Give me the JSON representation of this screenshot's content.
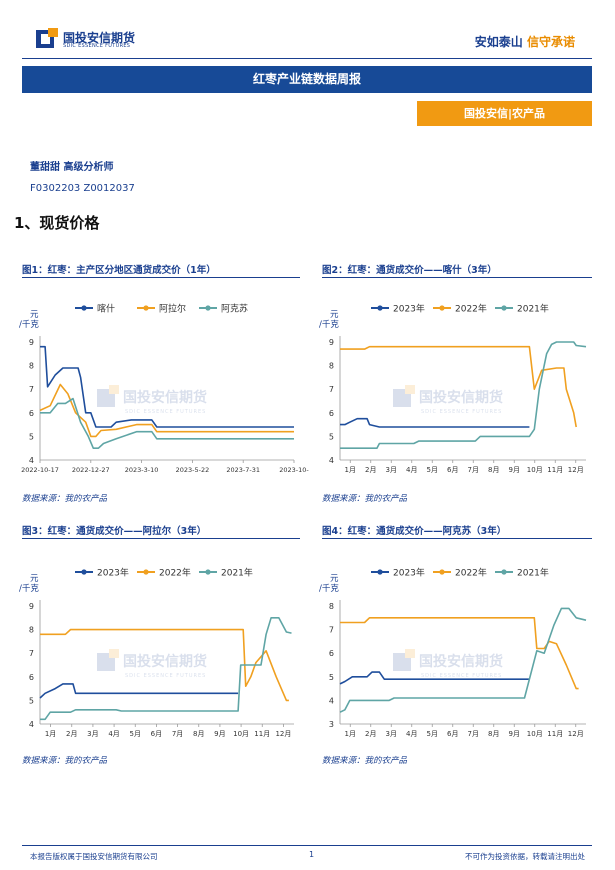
{
  "header": {
    "logo_cn": "国投安信期货",
    "logo_en": "SDIC ESSENCE FUTURES",
    "slogan_a": "安如泰山",
    "slogan_b": "信守承诺"
  },
  "report": {
    "title": "红枣产业链数据周报",
    "tag": "国投安信|农产品",
    "analyst": "董甜甜  高级分析师",
    "license": "F0302203  Z0012037",
    "section": "1、现货价格"
  },
  "watermark": {
    "cn": "国投安信期货",
    "en": "SDIC ESSENCE FUTURES"
  },
  "colors": {
    "blue": "#1f4e9c",
    "orange": "#f0a020",
    "teal": "#5fa5a5",
    "brand": "#1a3f8f",
    "accent": "#f19a12"
  },
  "figures": [
    {
      "title": "图1：红枣：主产区分地区通货成交价（1年）",
      "source": "数据来源：我的农产品",
      "chart_data": {
        "type": "line",
        "unit": "元/千克",
        "x_ticks": [
          "2022-10-17",
          "2022-12-27",
          "2023-3-10",
          "2023-5-22",
          "2023-7-31",
          "2023-10-"
        ],
        "ylim": [
          4,
          9
        ],
        "y_ticks": [
          "4",
          "5",
          "6",
          "7",
          "8",
          "9"
        ],
        "series": [
          {
            "name": "喀什",
            "color": "#1f4e9c",
            "points": [
              [
                0,
                8.8
              ],
              [
                2,
                8.8
              ],
              [
                3,
                7.1
              ],
              [
                6,
                7.6
              ],
              [
                9,
                7.9
              ],
              [
                15,
                7.9
              ],
              [
                16,
                7.5
              ],
              [
                18,
                6.0
              ],
              [
                20,
                6.0
              ],
              [
                22,
                5.4
              ],
              [
                28,
                5.4
              ],
              [
                30,
                5.6
              ],
              [
                36,
                5.7
              ],
              [
                44,
                5.7
              ],
              [
                46,
                5.4
              ],
              [
                100,
                5.4
              ]
            ]
          },
          {
            "name": "阿拉尔",
            "color": "#f0a020",
            "points": [
              [
                0,
                6.1
              ],
              [
                4,
                6.3
              ],
              [
                8,
                7.2
              ],
              [
                11,
                6.8
              ],
              [
                14,
                6.0
              ],
              [
                18,
                5.6
              ],
              [
                20,
                5.0
              ],
              [
                22,
                5.0
              ],
              [
                24,
                5.25
              ],
              [
                30,
                5.3
              ],
              [
                38,
                5.5
              ],
              [
                44,
                5.5
              ],
              [
                46,
                5.2
              ],
              [
                100,
                5.2
              ]
            ]
          },
          {
            "name": "阿克苏",
            "color": "#5fa5a5",
            "points": [
              [
                0,
                6.0
              ],
              [
                4,
                6.0
              ],
              [
                7,
                6.4
              ],
              [
                10,
                6.4
              ],
              [
                13,
                6.6
              ],
              [
                16,
                5.6
              ],
              [
                19,
                5.0
              ],
              [
                21,
                4.5
              ],
              [
                23,
                4.5
              ],
              [
                25,
                4.7
              ],
              [
                30,
                4.9
              ],
              [
                38,
                5.2
              ],
              [
                44,
                5.2
              ],
              [
                46,
                4.9
              ],
              [
                100,
                4.9
              ]
            ]
          }
        ]
      }
    },
    {
      "title": "图2：红枣：通货成交价——喀什（3年）",
      "source": "数据来源：我的农产品",
      "chart_data": {
        "type": "line",
        "unit": "元/千克",
        "x_ticks": [
          "1月",
          "2月",
          "3月",
          "4月",
          "5月",
          "6月",
          "7月",
          "8月",
          "9月",
          "10月",
          "11月",
          "12月"
        ],
        "ylim": [
          4,
          9
        ],
        "y_ticks": [
          "4",
          "5",
          "6",
          "7",
          "8",
          "9"
        ],
        "series": [
          {
            "name": "2023年",
            "color": "#1f4e9c",
            "points": [
              [
                0,
                5.5
              ],
              [
                2,
                5.5
              ],
              [
                4,
                5.6
              ],
              [
                7,
                5.75
              ],
              [
                11,
                5.75
              ],
              [
                12,
                5.5
              ],
              [
                16,
                5.4
              ],
              [
                77,
                5.4
              ]
            ]
          },
          {
            "name": "2022年",
            "color": "#f0a020",
            "points": [
              [
                0,
                8.7
              ],
              [
                10,
                8.7
              ],
              [
                12,
                8.8
              ],
              [
                77,
                8.8
              ],
              [
                79,
                7.0
              ],
              [
                82,
                7.8
              ],
              [
                88,
                7.9
              ],
              [
                91,
                7.9
              ],
              [
                92,
                7.0
              ],
              [
                95,
                6.0
              ],
              [
                96,
                5.4
              ]
            ]
          },
          {
            "name": "2021年",
            "color": "#5fa5a5",
            "points": [
              [
                0,
                4.5
              ],
              [
                15,
                4.5
              ],
              [
                16,
                4.7
              ],
              [
                30,
                4.7
              ],
              [
                32,
                4.8
              ],
              [
                55,
                4.8
              ],
              [
                57,
                5.0
              ],
              [
                77,
                5.0
              ],
              [
                79,
                5.3
              ],
              [
                81,
                7.0
              ],
              [
                84,
                8.5
              ],
              [
                86,
                8.9
              ],
              [
                88,
                9.0
              ],
              [
                95,
                9.0
              ],
              [
                96,
                8.85
              ],
              [
                100,
                8.8
              ]
            ]
          }
        ]
      }
    },
    {
      "title": "图3：红枣：通货成交价——阿拉尔（3年）",
      "source": "数据来源：我的农产品",
      "chart_data": {
        "type": "line",
        "unit": "元/千克",
        "x_ticks": [
          "1月",
          "2月",
          "3月",
          "4月",
          "5月",
          "6月",
          "7月",
          "8月",
          "9月",
          "10月",
          "11月",
          "12月"
        ],
        "ylim": [
          4,
          9
        ],
        "y_ticks": [
          "4",
          "5",
          "6",
          "7",
          "8",
          "9"
        ],
        "series": [
          {
            "name": "2023年",
            "color": "#1f4e9c",
            "points": [
              [
                0,
                5.1
              ],
              [
                2,
                5.3
              ],
              [
                6,
                5.5
              ],
              [
                9,
                5.7
              ],
              [
                13,
                5.7
              ],
              [
                14,
                5.3
              ],
              [
                78,
                5.3
              ]
            ]
          },
          {
            "name": "2022年",
            "color": "#f0a020",
            "points": [
              [
                0,
                7.8
              ],
              [
                10,
                7.8
              ],
              [
                12,
                8.0
              ],
              [
                80,
                8.0
              ],
              [
                81,
                5.6
              ],
              [
                83,
                6.0
              ],
              [
                85,
                6.6
              ],
              [
                89,
                7.1
              ],
              [
                93,
                6.0
              ],
              [
                97,
                5.0
              ],
              [
                98,
                5.0
              ]
            ]
          },
          {
            "name": "2021年",
            "color": "#5fa5a5",
            "points": [
              [
                0,
                4.2
              ],
              [
                2,
                4.2
              ],
              [
                4,
                4.5
              ],
              [
                12,
                4.5
              ],
              [
                14,
                4.6
              ],
              [
                30,
                4.6
              ],
              [
                32,
                4.55
              ],
              [
                78,
                4.55
              ],
              [
                79,
                6.5
              ],
              [
                87,
                6.5
              ],
              [
                89,
                7.8
              ],
              [
                91,
                8.5
              ],
              [
                94,
                8.5
              ],
              [
                97,
                7.9
              ],
              [
                99,
                7.85
              ]
            ]
          }
        ]
      }
    },
    {
      "title": "图4：红枣：通货成交价——阿克苏（3年）",
      "source": "数据来源：我的农产品",
      "chart_data": {
        "type": "line",
        "unit": "元/千克",
        "x_ticks": [
          "1月",
          "2月",
          "3月",
          "4月",
          "5月",
          "6月",
          "7月",
          "8月",
          "9月",
          "10月",
          "11月",
          "12月"
        ],
        "ylim": [
          3,
          8
        ],
        "y_ticks": [
          "3",
          "4",
          "5",
          "6",
          "7",
          "8"
        ],
        "series": [
          {
            "name": "2023年",
            "color": "#1f4e9c",
            "points": [
              [
                0,
                4.7
              ],
              [
                2,
                4.8
              ],
              [
                5,
                5.0
              ],
              [
                11,
                5.0
              ],
              [
                13,
                5.2
              ],
              [
                16,
                5.2
              ],
              [
                18,
                4.9
              ],
              [
                77,
                4.9
              ]
            ]
          },
          {
            "name": "2022年",
            "color": "#f0a020",
            "points": [
              [
                0,
                7.3
              ],
              [
                10,
                7.3
              ],
              [
                12,
                7.5
              ],
              [
                79,
                7.5
              ],
              [
                80,
                6.2
              ],
              [
                83,
                6.2
              ],
              [
                85,
                6.5
              ],
              [
                88,
                6.4
              ],
              [
                92,
                5.5
              ],
              [
                96,
                4.5
              ],
              [
                97,
                4.5
              ]
            ]
          },
          {
            "name": "2021年",
            "color": "#5fa5a5",
            "points": [
              [
                0,
                3.5
              ],
              [
                2,
                3.6
              ],
              [
                4,
                4.0
              ],
              [
                20,
                4.0
              ],
              [
                22,
                4.1
              ],
              [
                30,
                4.1
              ],
              [
                34,
                4.1
              ],
              [
                75,
                4.1
              ],
              [
                80,
                6.1
              ],
              [
                83,
                6.0
              ],
              [
                87,
                7.2
              ],
              [
                90,
                7.9
              ],
              [
                93,
                7.9
              ],
              [
                96,
                7.5
              ],
              [
                100,
                7.4
              ]
            ]
          }
        ]
      }
    }
  ],
  "footer": {
    "left": "本报告版权属于国投安信期货有限公司",
    "page": "1",
    "right": "不可作为投资依据，转载请注明出处"
  }
}
